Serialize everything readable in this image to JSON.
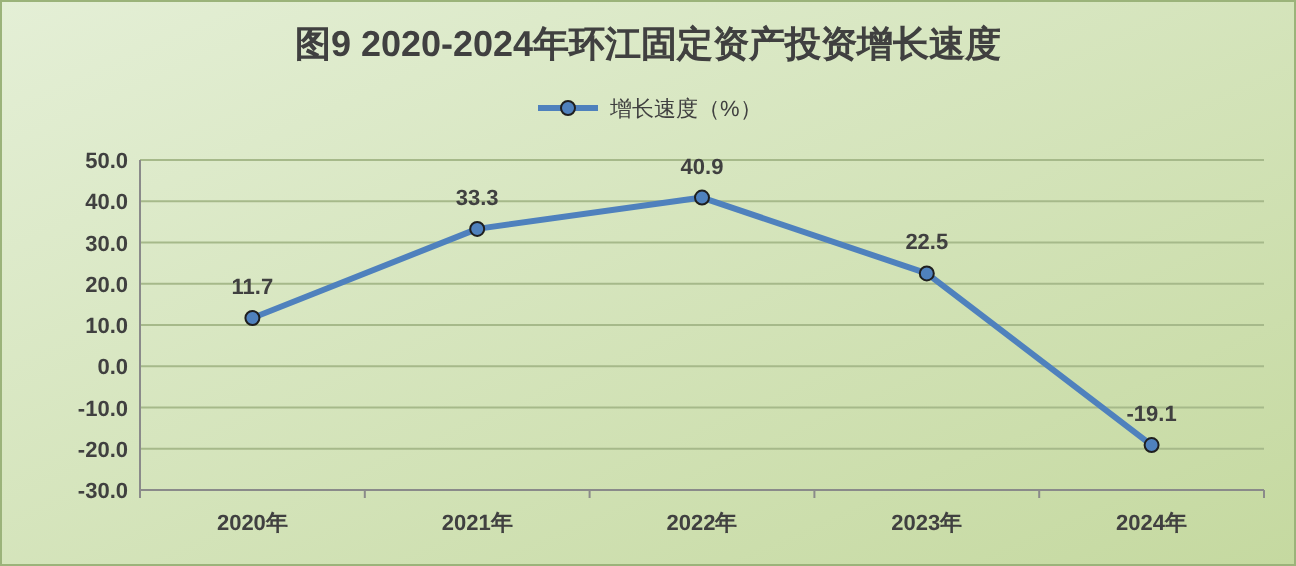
{
  "chart_data": {
    "type": "line",
    "title": "图9  2020-2024年环江固定资产投资增长速度",
    "categories": [
      "2020年",
      "2021年",
      "2022年",
      "2023年",
      "2024年"
    ],
    "series": [
      {
        "name": "增长速度（%）",
        "color": "#4f81bd",
        "values": [
          11.7,
          33.3,
          40.9,
          22.5,
          -19.1
        ]
      }
    ],
    "ylim": [
      -30,
      50
    ],
    "yticks": [
      {
        "value": -30,
        "label": "-30.0"
      },
      {
        "value": -20,
        "label": "-20.0"
      },
      {
        "value": -10,
        "label": "-10.0"
      },
      {
        "value": 0,
        "label": "0.0"
      },
      {
        "value": 10,
        "label": "10.0"
      },
      {
        "value": 20,
        "label": "20.0"
      },
      {
        "value": 30,
        "label": "30.0"
      },
      {
        "value": 40,
        "label": "40.0"
      },
      {
        "value": 50,
        "label": "50.0"
      }
    ],
    "grid": "y",
    "legend": "top",
    "marker": "circle",
    "data_labels": true
  }
}
